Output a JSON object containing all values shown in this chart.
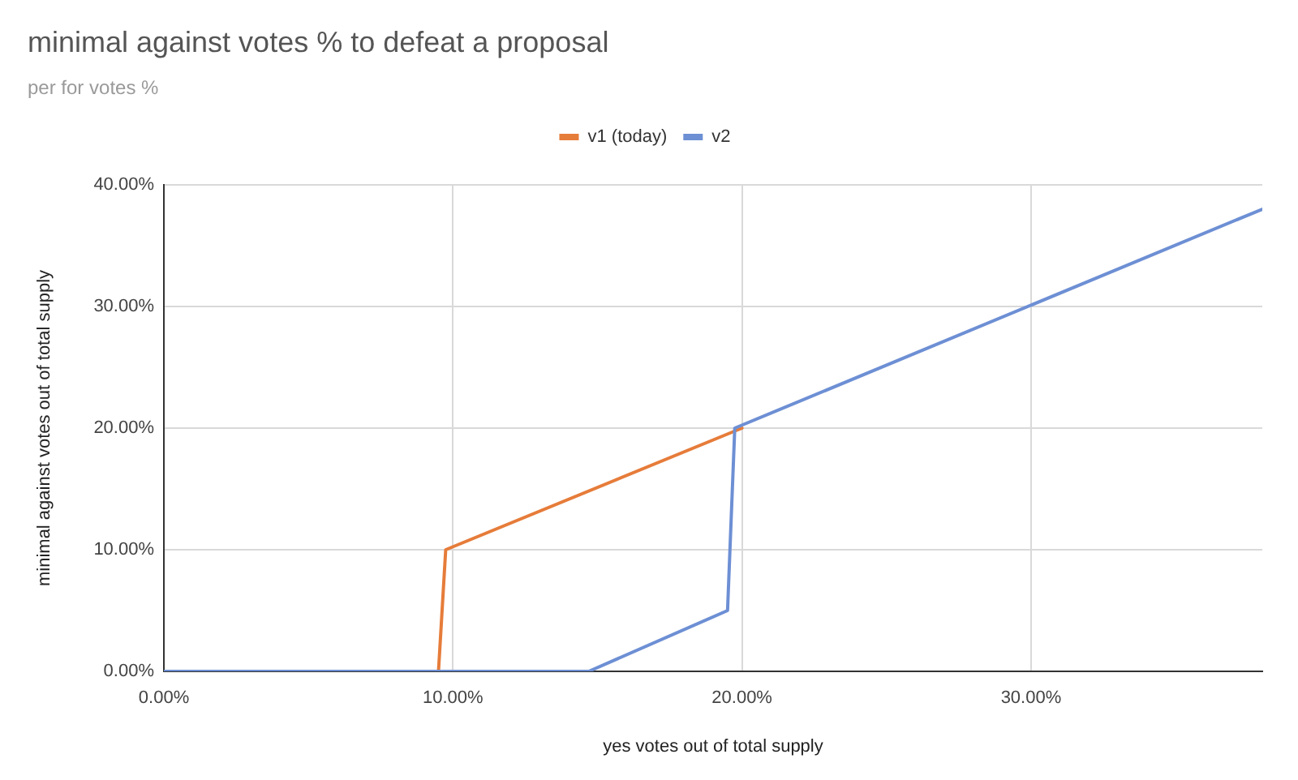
{
  "chart_data": {
    "type": "line",
    "title": "minimal against votes % to defeat a proposal",
    "subtitle": "per for votes %",
    "xlabel": "yes votes out of total supply",
    "ylabel": "minimal against votes out of total supply",
    "series": [
      {
        "name": "v1 (today)",
        "color": "#e67c3a",
        "x": [
          9.5,
          9.75,
          20
        ],
        "values": [
          0,
          10,
          20
        ]
      },
      {
        "name": "v2",
        "color": "#6d8fd4",
        "x": [
          0,
          14.7,
          19.5,
          19.75,
          38
        ],
        "values": [
          0,
          0,
          5,
          20,
          38
        ]
      }
    ],
    "xlim": [
      0,
      38
    ],
    "ylim": [
      0,
      40
    ],
    "xticks": [
      {
        "value": 0,
        "label": "0.00%"
      },
      {
        "value": 10,
        "label": "10.00%"
      },
      {
        "value": 20,
        "label": "20.00%"
      },
      {
        "value": 30,
        "label": "30.00%"
      }
    ],
    "yticks": [
      {
        "value": 0,
        "label": "0.00%"
      },
      {
        "value": 10,
        "label": "10.00%"
      },
      {
        "value": 20,
        "label": "20.00%"
      },
      {
        "value": 30,
        "label": "30.00%"
      },
      {
        "value": 40,
        "label": "40.00%"
      }
    ],
    "grid": true,
    "legend": "top"
  }
}
